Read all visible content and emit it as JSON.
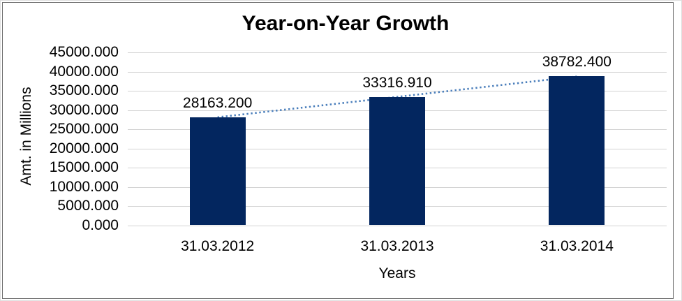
{
  "chart_data": {
    "type": "bar",
    "title": "Year-on-Year Growth",
    "xlabel": "Years",
    "ylabel": "Amt. in Millions",
    "categories": [
      "31.03.2012",
      "31.03.2013",
      "31.03.2014"
    ],
    "values": [
      28163.2,
      33316.91,
      38782.4
    ],
    "value_labels": [
      "28163.200",
      "33316.910",
      "38782.400"
    ],
    "y_ticks": [
      "45000.000",
      "40000.000",
      "35000.000",
      "30000.000",
      "25000.000",
      "20000.000",
      "15000.000",
      "10000.000",
      "5000.000",
      "0.000"
    ],
    "ylim": [
      0,
      45000
    ],
    "y_tick_step": 5000,
    "grid": true,
    "legend": "none",
    "colors": {
      "bar": "#03265f",
      "trendline": "#4a7ebb",
      "gridline": "#d3d3d3",
      "text": "#000000",
      "chart_border": "#6e6e6e"
    },
    "trendline": {
      "type": "linear",
      "style": "dotted"
    }
  }
}
